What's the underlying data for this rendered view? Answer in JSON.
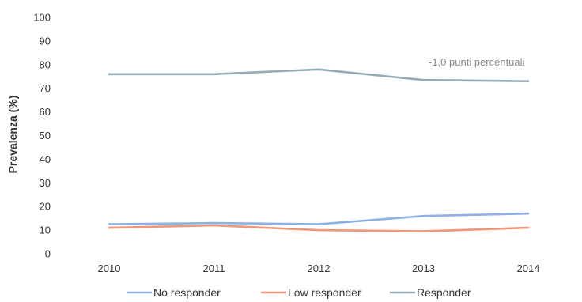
{
  "chart_data": {
    "type": "line",
    "x": [
      2010,
      2011,
      2012,
      2013,
      2014
    ],
    "xticks": [
      "2010",
      "2011",
      "2012",
      "2013",
      "2014"
    ],
    "ylabel": "Prevalenza (%)",
    "ylim": [
      0,
      100
    ],
    "yticks": [
      "0",
      "10",
      "20",
      "30",
      "40",
      "50",
      "60",
      "70",
      "80",
      "90",
      "100"
    ],
    "grid": false,
    "legend_position": "bottom",
    "annotation": "-1,0 punti percentuali",
    "series": [
      {
        "name": "No responder",
        "color": "#8fb0e3",
        "values": [
          12.5,
          13,
          12.5,
          16,
          17
        ]
      },
      {
        "name": "Low responder",
        "color": "#f0967a",
        "values": [
          11,
          12,
          10,
          9.5,
          11
        ]
      },
      {
        "name": "Responder",
        "color": "#95aab8",
        "values": [
          76,
          76,
          78,
          73.5,
          73
        ]
      }
    ]
  }
}
